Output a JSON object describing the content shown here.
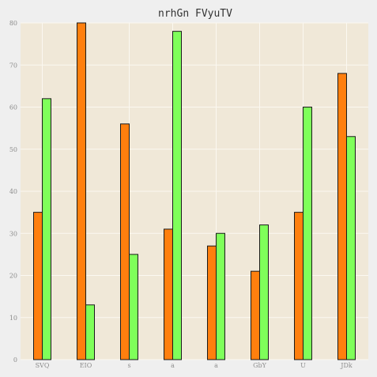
{
  "chart_data": {
    "type": "bar",
    "title": "nrhGn  FVyuTV",
    "xlabel": "",
    "ylabel": "",
    "categories": [
      "SVQ",
      "EIO",
      "s",
      "a",
      "a",
      "GbY",
      "U",
      "JDk"
    ],
    "series": [
      {
        "values": [
          35,
          80,
          56,
          31,
          27,
          21,
          35,
          68
        ],
        "color": "#ff7f0e"
      },
      {
        "values": [
          62,
          13,
          25,
          78,
          30,
          32,
          60,
          53
        ],
        "color": "#7fff5a"
      }
    ],
    "ylim": [
      0,
      80
    ],
    "yticks": [
      0,
      10,
      20,
      30,
      40,
      50,
      60,
      70,
      80
    ],
    "grid": true,
    "legend": "none",
    "colors": {
      "background": "#efefef",
      "plot_background": "#f0e8d8",
      "grid": "#fbf8f1"
    }
  }
}
